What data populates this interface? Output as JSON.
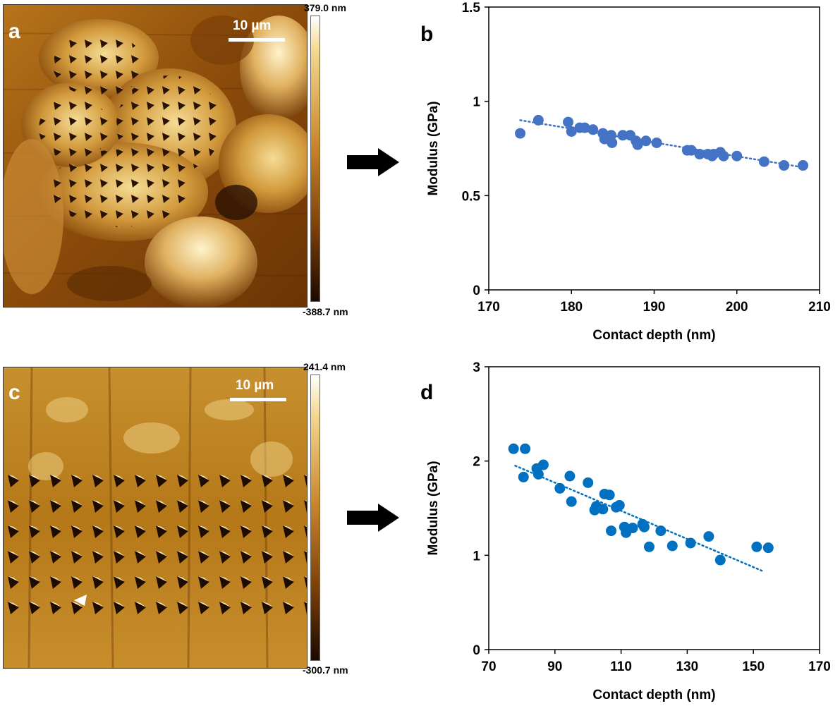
{
  "panels": {
    "a": {
      "letter": "a",
      "scale_label": "10 µm",
      "colorbar_max": "379.0 nm",
      "colorbar_min": "-388.7 nm"
    },
    "c": {
      "letter": "c",
      "scale_label": "10 µm",
      "colorbar_max": "241.4 nm",
      "colorbar_min": "-300.7 nm"
    }
  },
  "colors": {
    "afm_dark": "#1a0a00",
    "afm_mid": "#a8620a",
    "afm_light": "#f3d890",
    "afm_white": "#ffffff",
    "series_b": "#4472c4",
    "series_d": "#0070c0"
  },
  "chart_data": [
    {
      "panel": "b",
      "type": "scatter",
      "xlabel": "Contact depth (nm)",
      "ylabel": "Modulus (GPa)",
      "xlim": [
        170,
        210
      ],
      "ylim": [
        0,
        1.5
      ],
      "xticks": [
        "170",
        "180",
        "190",
        "200",
        "210"
      ],
      "yticks": [
        "0",
        "0.5",
        "1",
        "1.5"
      ],
      "grid": false,
      "trendline": {
        "style": "dotted",
        "x": [
          173.8,
          208
        ],
        "y": [
          0.9,
          0.65
        ]
      },
      "series": [
        {
          "x": [
            173.8,
            176.0,
            179.6,
            180.0,
            181.0,
            181.6,
            182.6,
            183.8,
            184.0,
            184.8,
            184.9,
            186.2,
            187.1,
            187.8,
            188.0,
            189.0,
            190.3,
            194.0,
            194.5,
            195.5,
            196.5,
            197.0,
            197.2,
            198.0,
            198.4,
            200.0,
            203.3,
            205.7,
            208.0
          ],
          "y": [
            0.83,
            0.9,
            0.89,
            0.84,
            0.86,
            0.86,
            0.85,
            0.83,
            0.8,
            0.82,
            0.78,
            0.82,
            0.82,
            0.79,
            0.77,
            0.79,
            0.78,
            0.74,
            0.74,
            0.72,
            0.72,
            0.71,
            0.72,
            0.73,
            0.71,
            0.71,
            0.68,
            0.66,
            0.66
          ]
        }
      ]
    },
    {
      "panel": "d",
      "type": "scatter",
      "xlabel": "Contact depth (nm)",
      "ylabel": "Modulus (GPa)",
      "xlim": [
        70,
        170
      ],
      "ylim": [
        0,
        3
      ],
      "xticks": [
        "70",
        "90",
        "110",
        "130",
        "150",
        "170"
      ],
      "yticks": [
        "0",
        "1",
        "2",
        "3"
      ],
      "grid": false,
      "trendline": {
        "style": "dotted",
        "x": [
          78,
          153
        ],
        "y": [
          1.95,
          0.83
        ]
      },
      "series": [
        {
          "x": [
            77.5,
            81.0,
            80.5,
            84.5,
            85.0,
            86.5,
            91.5,
            94.5,
            95.0,
            100.0,
            102.0,
            102.5,
            104.5,
            105.0,
            106.5,
            107.0,
            108.5,
            109.5,
            111.0,
            111.5,
            113.5,
            116.5,
            117.0,
            118.5,
            122.0,
            125.5,
            131.0,
            136.5,
            140.0,
            151.0,
            154.5
          ],
          "y": [
            2.13,
            2.13,
            1.83,
            1.92,
            1.86,
            1.96,
            1.71,
            1.84,
            1.57,
            1.77,
            1.48,
            1.52,
            1.49,
            1.65,
            1.64,
            1.26,
            1.51,
            1.53,
            1.3,
            1.24,
            1.29,
            1.33,
            1.3,
            1.09,
            1.26,
            1.1,
            1.13,
            1.2,
            0.95,
            1.09,
            1.08
          ]
        }
      ]
    }
  ]
}
